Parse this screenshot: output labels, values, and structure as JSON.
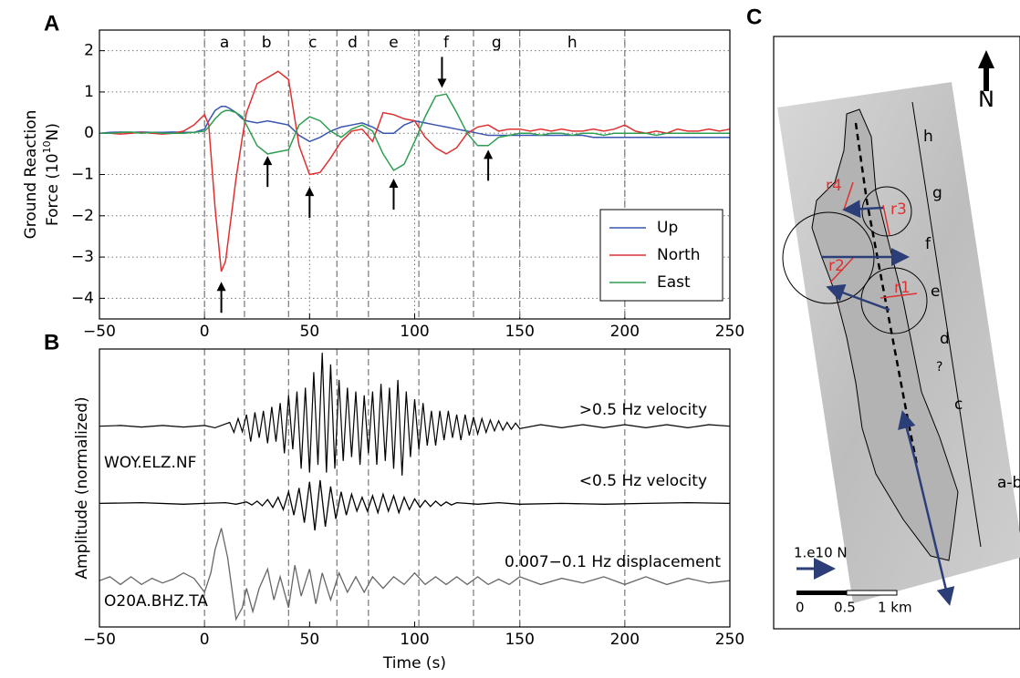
{
  "chart_data": [
    {
      "type": "line",
      "panel": "A",
      "ylabel": {
        "line1": "Ground Reaction",
        "line2_before": "Force (10",
        "line2_sup": "10",
        "line2_after": "N)"
      },
      "xlim": [
        -50,
        250
      ],
      "ylim": [
        -4.5,
        2.5
      ],
      "xticks": [
        {
          "value": -50,
          "label": "−50"
        },
        0,
        50,
        100,
        150,
        200,
        250
      ],
      "yticks": [
        {
          "value": -4,
          "label": "−4"
        },
        {
          "value": -3,
          "label": "−3"
        },
        {
          "value": -2,
          "label": "−2"
        },
        {
          "value": -1,
          "label": "−1"
        },
        0,
        1,
        2
      ],
      "grid": true,
      "legend": "lower right",
      "boundaries": [
        0,
        19,
        40,
        63,
        78,
        102,
        128,
        150,
        200
      ],
      "segments": [
        "a",
        "b",
        "c",
        "d",
        "e",
        "f",
        "g",
        "h"
      ],
      "arrows": [
        {
          "x": 8,
          "y": -3.6,
          "dir": "up"
        },
        {
          "x": 30,
          "y": -0.55,
          "dir": "up"
        },
        {
          "x": 50,
          "y": -1.3,
          "dir": "up"
        },
        {
          "x": 90,
          "y": -1.1,
          "dir": "up"
        },
        {
          "x": 113,
          "y": 1.1,
          "dir": "down"
        },
        {
          "x": 135,
          "y": -0.4,
          "dir": "up"
        }
      ],
      "x": [
        -50,
        -45,
        -40,
        -35,
        -30,
        -25,
        -20,
        -15,
        -10,
        -5,
        0,
        2,
        5,
        8,
        10,
        12,
        15,
        18,
        20,
        25,
        30,
        35,
        40,
        45,
        50,
        55,
        60,
        65,
        70,
        75,
        80,
        85,
        90,
        95,
        100,
        105,
        110,
        115,
        120,
        125,
        130,
        135,
        140,
        145,
        150,
        155,
        160,
        165,
        170,
        175,
        180,
        185,
        190,
        195,
        200,
        205,
        210,
        215,
        220,
        225,
        230,
        235,
        240,
        245,
        250
      ],
      "series": [
        {
          "name": "Up",
          "color": "#3a56b0",
          "values": [
            0,
            0.02,
            0.03,
            0.02,
            0.03,
            0.02,
            0.02,
            0.03,
            0.02,
            0.02,
            0.1,
            0.3,
            0.55,
            0.65,
            0.65,
            0.6,
            0.5,
            0.35,
            0.3,
            0.25,
            0.3,
            0.25,
            0.2,
            -0.05,
            -0.2,
            -0.1,
            0.05,
            0.15,
            0.2,
            0.25,
            0.15,
            0,
            0,
            0.2,
            0.3,
            0.25,
            0.2,
            0.15,
            0.1,
            0.05,
            0,
            -0.05,
            -0.05,
            -0.05,
            -0.05,
            -0.05,
            -0.05,
            -0.05,
            -0.05,
            -0.05,
            -0.05,
            -0.1,
            -0.1,
            -0.1,
            -0.1,
            -0.1,
            -0.1,
            -0.1,
            -0.1,
            -0.1,
            -0.1,
            -0.1,
            -0.1,
            -0.1,
            -0.1
          ]
        },
        {
          "name": "North",
          "color": "#e03030",
          "values": [
            0,
            0,
            -0.02,
            0,
            0.02,
            0,
            -0.02,
            0,
            0.05,
            0.2,
            0.45,
            0.2,
            -1.8,
            -3.35,
            -3.1,
            -2.3,
            -1.1,
            -0.1,
            0.5,
            1.2,
            1.35,
            1.5,
            1.3,
            -0.3,
            -1.0,
            -0.95,
            -0.6,
            -0.2,
            0.05,
            0.1,
            -0.2,
            0.5,
            0.45,
            0.35,
            0.3,
            -0.1,
            -0.35,
            -0.5,
            -0.35,
            0,
            0.15,
            0.2,
            0.05,
            0.1,
            0.1,
            0.05,
            0.1,
            0.05,
            0.1,
            0.05,
            0.05,
            0.1,
            0.05,
            0.1,
            0.2,
            0.05,
            0,
            0.05,
            0,
            0.1,
            0.05,
            0.05,
            0.1,
            0.05,
            0.1
          ]
        },
        {
          "name": "East",
          "color": "#2e9e52",
          "values": [
            0,
            0,
            0.02,
            0.03,
            0,
            0.02,
            0,
            0,
            0,
            0.02,
            0.05,
            0.15,
            0.35,
            0.5,
            0.55,
            0.55,
            0.5,
            0.4,
            0.2,
            -0.3,
            -0.5,
            -0.45,
            -0.4,
            0.2,
            0.4,
            0.3,
            0.05,
            -0.1,
            0.1,
            0.2,
            0.05,
            -0.5,
            -0.9,
            -0.75,
            -0.2,
            0.4,
            0.9,
            0.95,
            0.5,
            0,
            -0.3,
            -0.3,
            -0.1,
            -0.05,
            0,
            0,
            -0.05,
            0,
            0,
            -0.05,
            0,
            0,
            -0.05,
            0,
            0,
            0,
            0,
            -0.05,
            0,
            0,
            0,
            0,
            0,
            0,
            0
          ]
        }
      ]
    },
    {
      "type": "trace",
      "panel": "B",
      "ylabel": "Amplitude (normalized)",
      "xlabel": "Time (s)",
      "xlim": [
        -50,
        250
      ],
      "ylim": [
        -2.6,
        1
      ],
      "xticks": [
        {
          "value": -50,
          "label": "−50"
        },
        0,
        50,
        100,
        150,
        200,
        250
      ],
      "grid": false,
      "boundaries": [
        0,
        19,
        40,
        63,
        78,
        102,
        128,
        150,
        200
      ],
      "stations": [
        "WOY.ELZ.NF",
        "O20A.BHZ.TA"
      ],
      "series": [
        {
          "name": ">0.5 Hz velocity",
          "color": "#000000",
          "x": [
            -50,
            -40,
            -30,
            -20,
            -10,
            0,
            5,
            10,
            12,
            14,
            16,
            18,
            20,
            22,
            24,
            26,
            28,
            30,
            32,
            34,
            36,
            38,
            40,
            42,
            44,
            46,
            48,
            50,
            52,
            54,
            56,
            58,
            60,
            62,
            64,
            66,
            68,
            70,
            72,
            74,
            76,
            78,
            80,
            82,
            84,
            86,
            88,
            90,
            92,
            94,
            96,
            98,
            100,
            102,
            104,
            106,
            108,
            110,
            112,
            114,
            116,
            118,
            120,
            122,
            124,
            126,
            128,
            130,
            132,
            134,
            136,
            138,
            140,
            142,
            144,
            146,
            148,
            150,
            160,
            170,
            180,
            190,
            200,
            210,
            220,
            230,
            240,
            250
          ],
          "values": [
            0,
            0.01,
            -0.01,
            0.01,
            -0.01,
            0.01,
            -0.02,
            0.03,
            0.05,
            -0.08,
            0.1,
            -0.07,
            0.15,
            -0.2,
            0.18,
            -0.15,
            0.2,
            -0.22,
            0.25,
            -0.2,
            0.3,
            -0.35,
            0.4,
            -0.3,
            0.45,
            -0.55,
            0.5,
            -0.6,
            0.7,
            -0.5,
            0.95,
            -0.6,
            0.8,
            -0.55,
            0.6,
            -0.45,
            0.5,
            -0.4,
            0.45,
            -0.5,
            0.4,
            -0.35,
            0.45,
            -0.5,
            0.55,
            -0.45,
            0.5,
            -0.55,
            0.6,
            -0.64,
            0.45,
            -0.4,
            0.35,
            -0.3,
            0.3,
            -0.25,
            0.2,
            -0.25,
            0.2,
            -0.18,
            0.2,
            -0.15,
            0.15,
            -0.18,
            0.15,
            -0.12,
            0.12,
            -0.1,
            0.1,
            -0.08,
            0.08,
            -0.06,
            0.07,
            -0.05,
            0.05,
            -0.04,
            0.04,
            -0.03,
            0.02,
            -0.02,
            0.02,
            -0.02,
            0.02,
            -0.02,
            0.02,
            -0.02,
            0.02,
            0
          ]
        },
        {
          "name": "<0.5 Hz velocity",
          "color": "#000000",
          "x": [
            -50,
            -30,
            -10,
            0,
            10,
            15,
            20,
            22.5,
            25,
            27.5,
            30,
            32.5,
            35,
            37.5,
            40,
            42.5,
            45,
            47.5,
            50,
            52.5,
            55,
            57.5,
            60,
            62.5,
            65,
            67.5,
            70,
            72.5,
            75,
            77.5,
            80,
            82.5,
            85,
            87.5,
            90,
            92.5,
            95,
            97.5,
            100,
            102.5,
            105,
            107.5,
            110,
            112.5,
            115,
            117.5,
            120,
            130,
            140,
            150,
            170,
            190,
            210,
            230,
            250
          ],
          "values": [
            -1,
            -0.99,
            -1.01,
            -1,
            -0.99,
            -1.01,
            -0.98,
            -1.02,
            -0.97,
            -1.03,
            -0.95,
            -1.05,
            -0.92,
            -1.08,
            -0.85,
            -1.15,
            -0.8,
            -1.25,
            -0.72,
            -1.35,
            -0.7,
            -1.3,
            -0.78,
            -1.2,
            -0.85,
            -1.15,
            -0.88,
            -1.1,
            -0.92,
            -1.1,
            -0.9,
            -1.12,
            -0.88,
            -1.1,
            -0.9,
            -1.12,
            -0.92,
            -1.08,
            -0.94,
            -1.05,
            -0.96,
            -1.04,
            -0.97,
            -1.03,
            -0.98,
            -1.02,
            -0.99,
            -1.01,
            -0.99,
            -1.01,
            -1,
            -1.01,
            -1,
            -0.99,
            -1
          ]
        },
        {
          "name": "0.007−0.1 Hz displacement",
          "color": "#666666",
          "x": [
            -50,
            -45,
            -40,
            -35,
            -30,
            -25,
            -20,
            -15,
            -10,
            -5,
            0,
            3,
            5,
            8,
            11,
            15,
            18,
            20,
            23,
            26,
            30,
            33,
            36,
            40,
            43,
            46,
            50,
            53,
            56,
            60,
            64,
            68,
            72,
            76,
            80,
            85,
            90,
            95,
            100,
            105,
            110,
            115,
            120,
            125,
            130,
            135,
            140,
            145,
            150,
            160,
            170,
            180,
            190,
            200,
            210,
            220,
            230,
            240,
            250
          ],
          "values": [
            -2.0,
            -1.95,
            -2.05,
            -1.95,
            -2.05,
            -1.97,
            -2.03,
            -1.98,
            -1.9,
            -1.97,
            -2.15,
            -1.9,
            -1.6,
            -1.32,
            -1.7,
            -2.5,
            -2.35,
            -2.1,
            -2.4,
            -2.1,
            -1.85,
            -2.25,
            -1.95,
            -2.35,
            -1.8,
            -2.2,
            -1.85,
            -2.3,
            -1.9,
            -2.25,
            -1.9,
            -2.15,
            -1.95,
            -2.15,
            -1.95,
            -2.1,
            -1.95,
            -2.05,
            -1.9,
            -2.05,
            -1.95,
            -2.05,
            -1.95,
            -2.05,
            -1.95,
            -2.05,
            -1.98,
            -2.05,
            -1.95,
            -2.05,
            -1.97,
            -2.03,
            -1.95,
            -2.05,
            -1.95,
            -2.05,
            -1.97,
            -2.03,
            -2.0
          ]
        }
      ]
    }
  ],
  "map": {
    "panel": "C",
    "north": "N",
    "segments": [
      "h",
      "g",
      "f",
      "e",
      "d",
      "?",
      "c",
      "a-b"
    ],
    "radii": [
      "r1",
      "r2",
      "r3",
      "r4"
    ],
    "force_scale": "1.e10 N",
    "scale": [
      "0",
      "0.5",
      "1 km"
    ]
  }
}
